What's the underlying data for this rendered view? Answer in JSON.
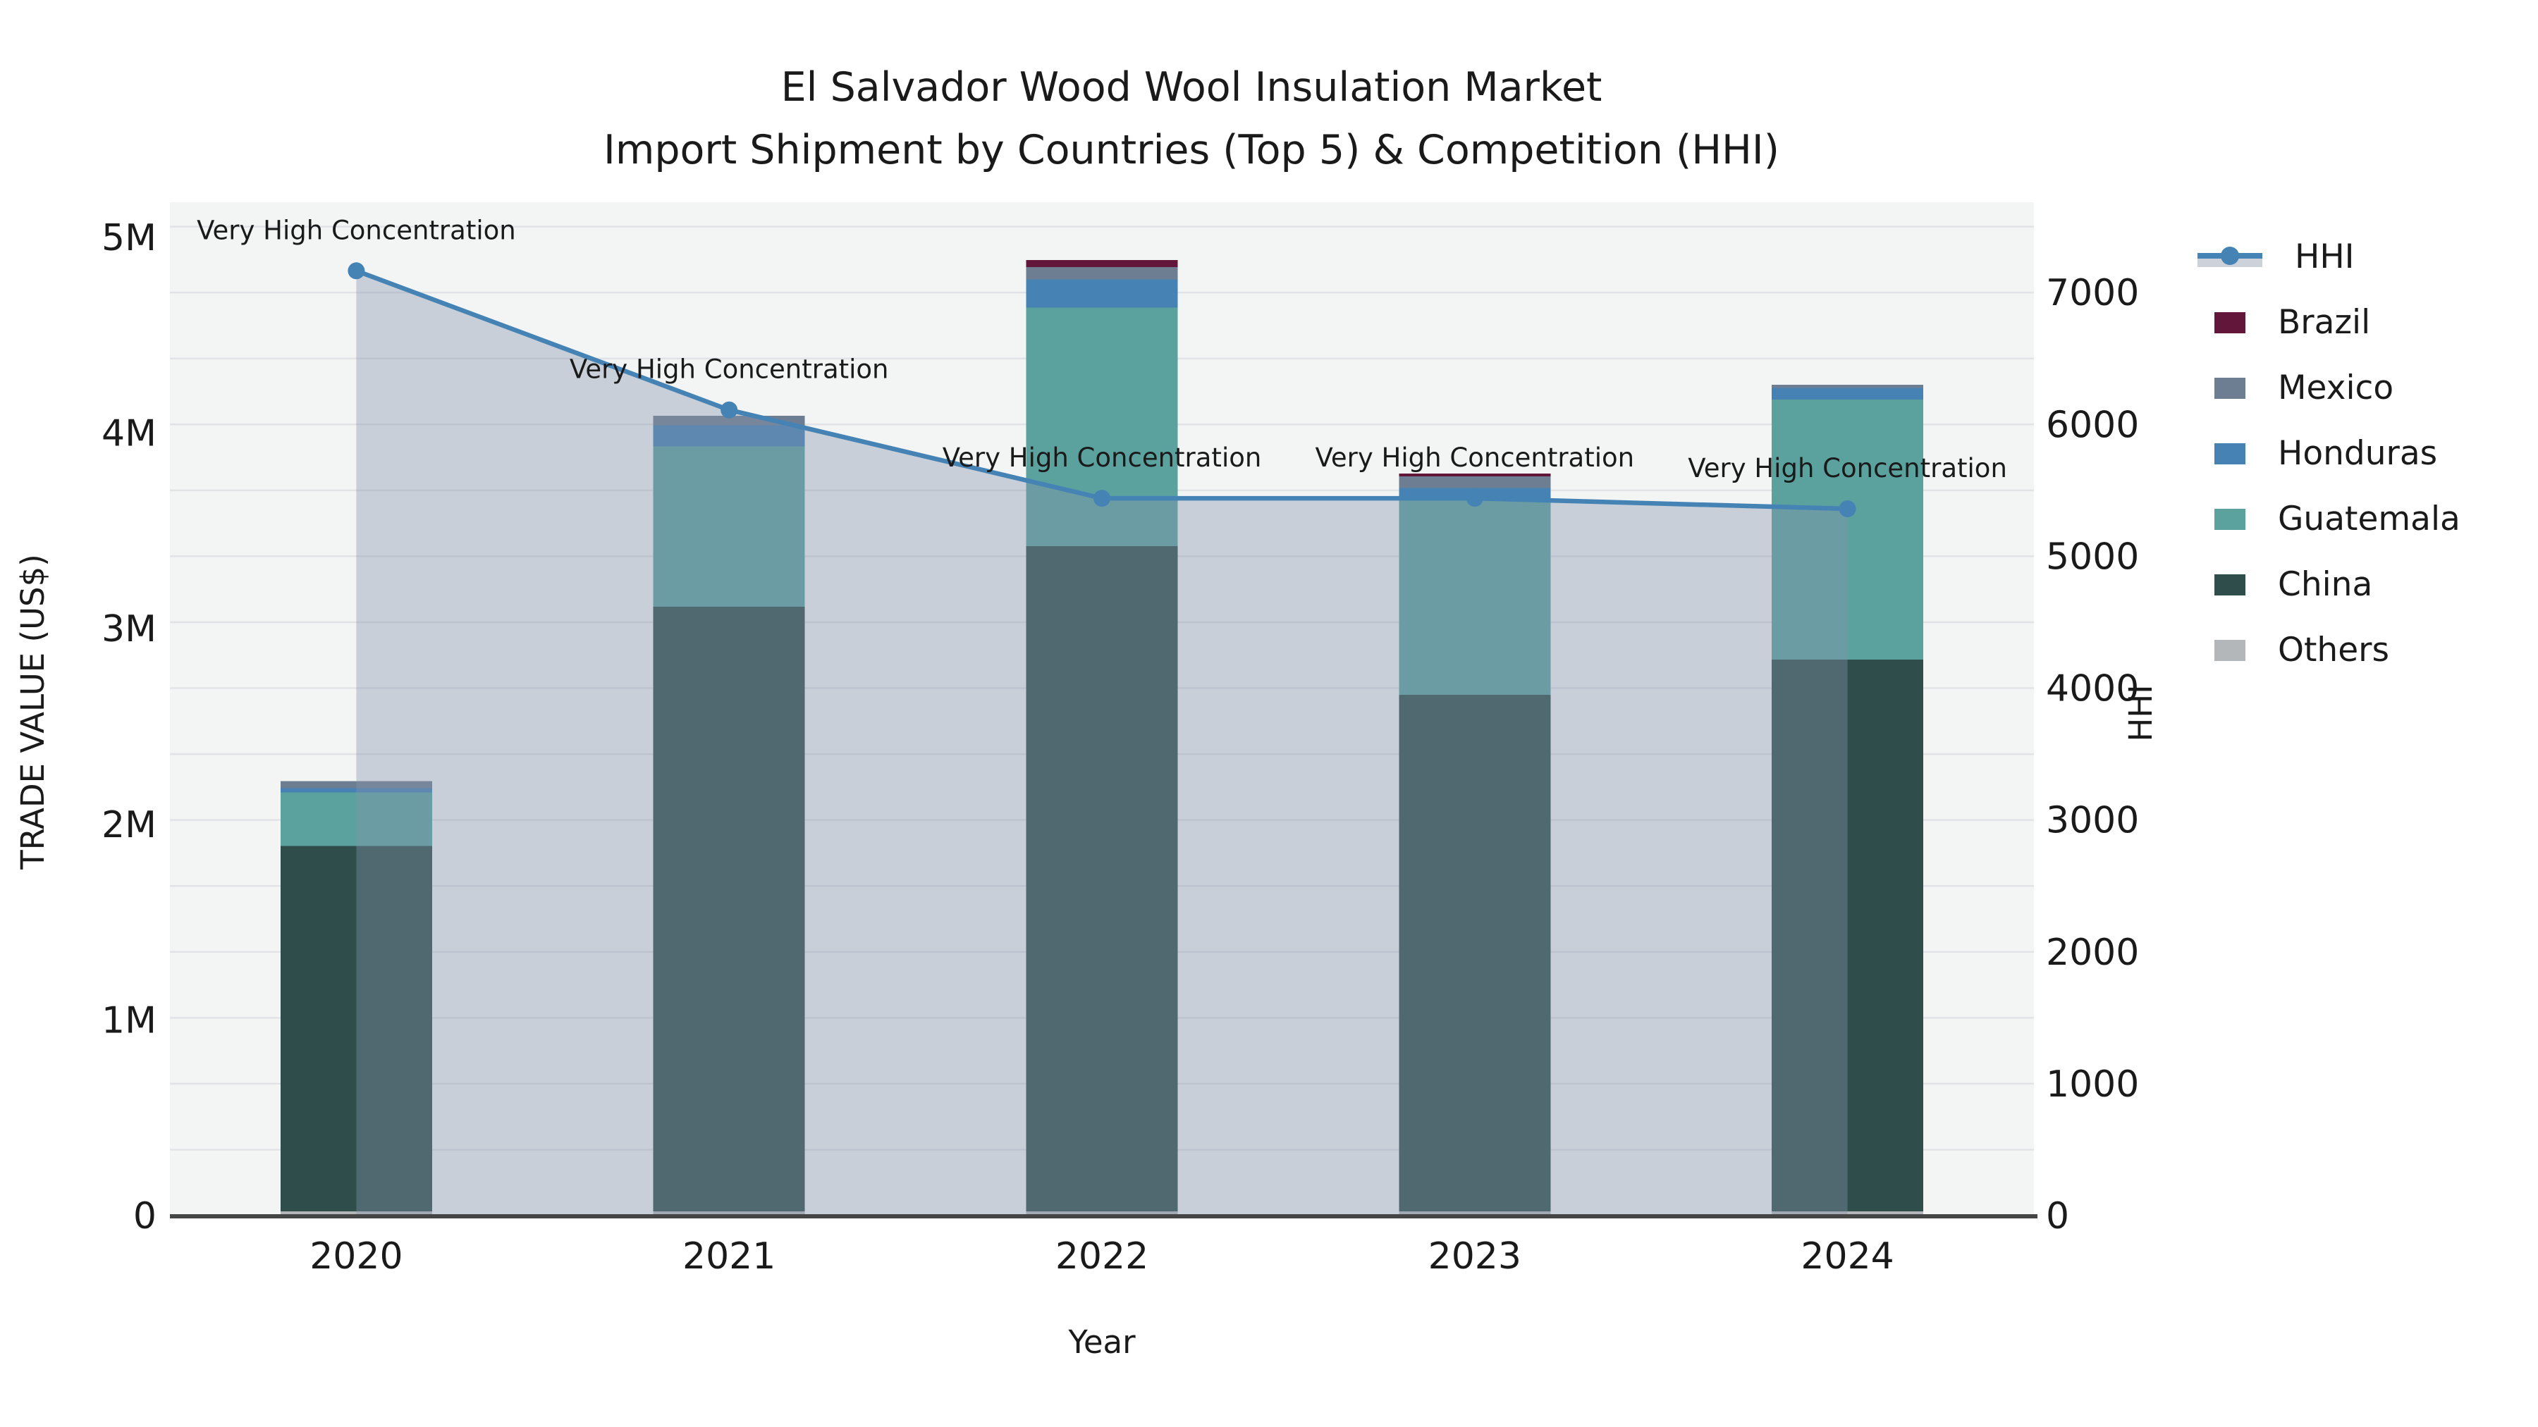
{
  "title": {
    "line1": "El Salvador Wood Wool Insulation Market",
    "line2": "Import Shipment by Countries (Top 5) & Competition (HHI)"
  },
  "axes": {
    "left_label": "TRADE VALUE (US$)",
    "right_label": "HHI",
    "x_label": "Year"
  },
  "legend": {
    "items": [
      {
        "label": "HHI",
        "type": "line",
        "color": "#4583b5"
      },
      {
        "label": "Brazil",
        "type": "box",
        "color": "#621639"
      },
      {
        "label": "Mexico",
        "type": "box",
        "color": "#6e7e92"
      },
      {
        "label": "Honduras",
        "type": "box",
        "color": "#4682b4"
      },
      {
        "label": "Guatemala",
        "type": "box",
        "color": "#5ba29f"
      },
      {
        "label": "China",
        "type": "box",
        "color": "#2f4e4b"
      },
      {
        "label": "Others",
        "type": "box",
        "color": "#b4b7b9"
      }
    ]
  },
  "chart_data": {
    "type": "bar+line",
    "title": "El Salvador Wood Wool Insulation Market — Import Shipment by Countries (Top 5) & Competition (HHI)",
    "categories": [
      "2020",
      "2021",
      "2022",
      "2023",
      "2024"
    ],
    "stack_order": [
      "Others",
      "China",
      "Guatemala",
      "Honduras",
      "Mexico",
      "Brazil"
    ],
    "series": [
      {
        "name": "Brazil",
        "color": "#621639",
        "values": [
          0,
          0,
          36000,
          15000,
          0
        ]
      },
      {
        "name": "Mexico",
        "color": "#6e7e92",
        "values": [
          36000,
          48000,
          62000,
          58000,
          17000
        ]
      },
      {
        "name": "Honduras",
        "color": "#4682b4",
        "values": [
          22000,
          108000,
          144000,
          58000,
          58000
        ]
      },
      {
        "name": "Guatemala",
        "color": "#5ba29f",
        "values": [
          273000,
          820000,
          1220000,
          1000000,
          1330000
        ]
      },
      {
        "name": "China",
        "color": "#2f4e4b",
        "values": [
          1868000,
          3090000,
          3400000,
          2640000,
          2820000
        ]
      },
      {
        "name": "Others",
        "color": "#b4b7b9",
        "values": [
          22000,
          22000,
          22000,
          22000,
          22000
        ]
      }
    ],
    "line_series": {
      "name": "HHI",
      "color": "#4583b5",
      "area_color": "rgba(133,146,170,0.38)",
      "values": [
        7165,
        6110,
        5440,
        5440,
        5360
      ]
    },
    "annotations": [
      {
        "category": "2020",
        "text": "Very High Concentration"
      },
      {
        "category": "2021",
        "text": "Very High Concentration"
      },
      {
        "category": "2022",
        "text": "Very High Concentration"
      },
      {
        "category": "2023",
        "text": "Very High Concentration"
      },
      {
        "category": "2024",
        "text": "Very High Concentration"
      }
    ],
    "axis_left": {
      "label": "TRADE VALUE (US$)",
      "max_value": 5180000,
      "ticks": [
        {
          "value": 0,
          "label": "0"
        },
        {
          "value": 1000000,
          "label": "1M"
        },
        {
          "value": 2000000,
          "label": "2M"
        },
        {
          "value": 3000000,
          "label": "3M"
        },
        {
          "value": 4000000,
          "label": "4M"
        },
        {
          "value": 5000000,
          "label": "5M"
        }
      ]
    },
    "axis_right": {
      "label": "HHI",
      "max_value": 7685,
      "grid_step": 500,
      "ticks": [
        {
          "value": 0,
          "label": "0"
        },
        {
          "value": 1000,
          "label": "1000"
        },
        {
          "value": 2000,
          "label": "2000"
        },
        {
          "value": 3000,
          "label": "3000"
        },
        {
          "value": 4000,
          "label": "4000"
        },
        {
          "value": 5000,
          "label": "5000"
        },
        {
          "value": 6000,
          "label": "6000"
        },
        {
          "value": 7000,
          "label": "7000"
        }
      ]
    },
    "xlabel": "Year",
    "ylabel_left": "TRADE VALUE (US$)",
    "ylabel_right": "HHI",
    "grid": true,
    "legend_position": "right"
  },
  "style": {
    "panel_bg": "#f3f4f4",
    "grid_color": "#e1e3e6",
    "spine_color": "#454545",
    "text_color": "#1a1a1a"
  }
}
